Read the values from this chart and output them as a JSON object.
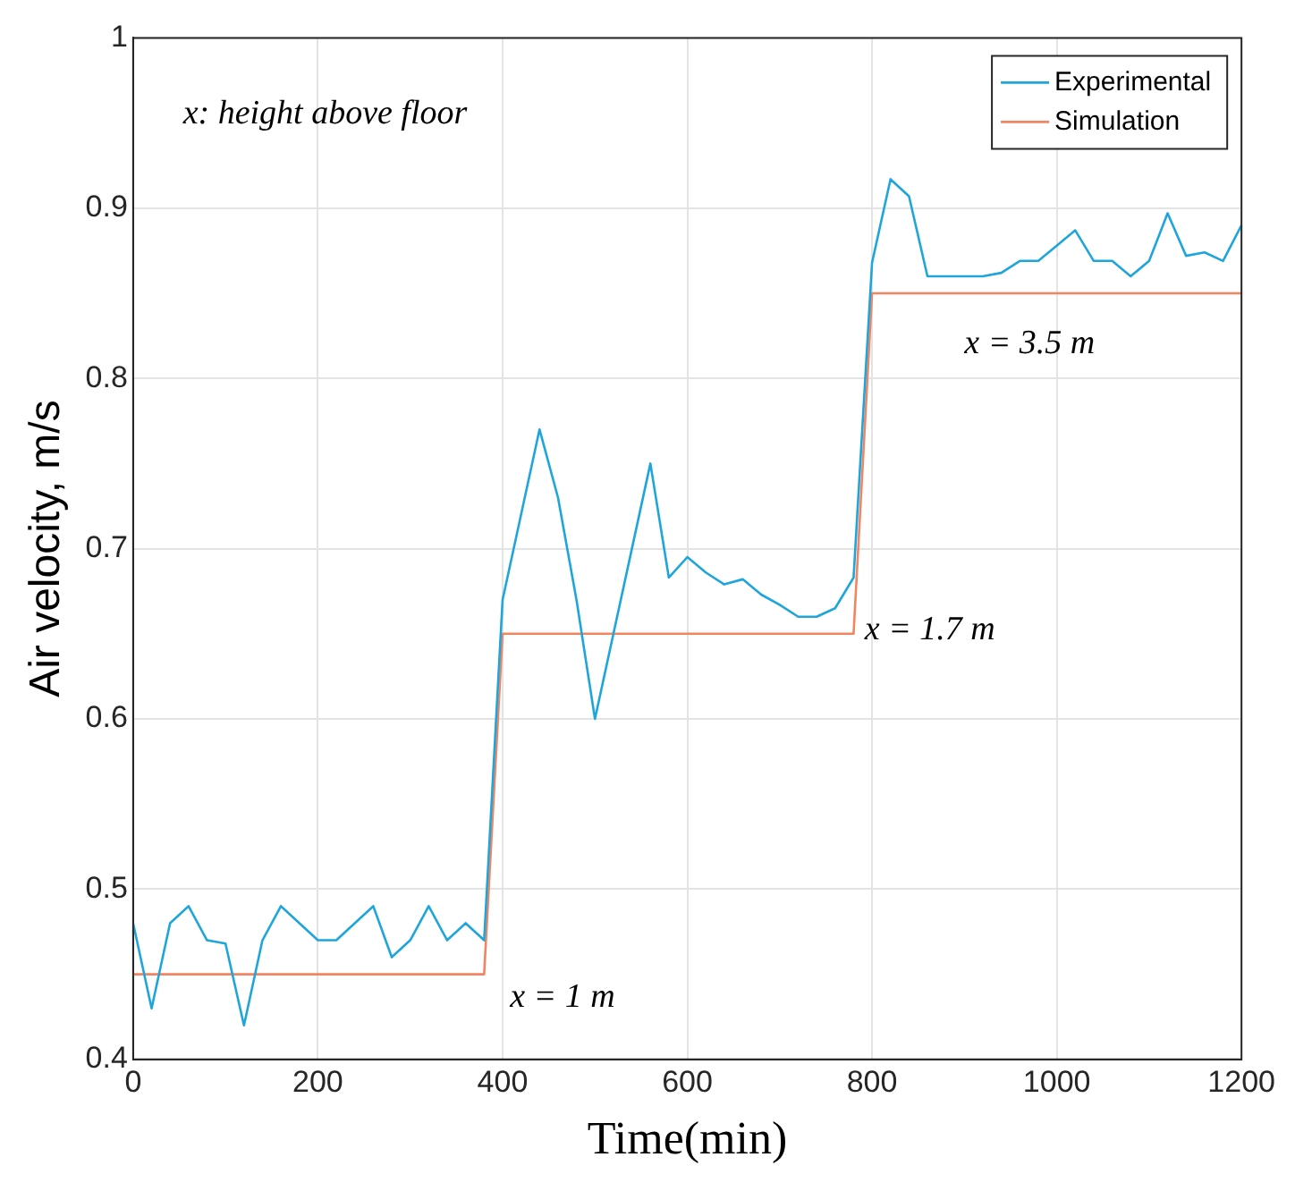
{
  "chart_data": {
    "type": "line",
    "xlabel": "Time(min)",
    "ylabel": "Air velocity, m/s",
    "xlim": [
      0,
      1200
    ],
    "xticks": [
      0,
      200,
      400,
      600,
      800,
      1000,
      1200
    ],
    "ylim": [
      0.4,
      1
    ],
    "yticks": [
      0.4,
      0.5,
      0.6,
      0.7,
      0.8,
      0.9,
      1
    ],
    "grid": true,
    "legend": "top right",
    "marker": "none",
    "series": [
      {
        "name": "Experimental",
        "color": "#1ea6dc",
        "x": [
          0,
          20,
          40,
          60,
          80,
          100,
          120,
          140,
          160,
          180,
          200,
          220,
          240,
          260,
          280,
          300,
          320,
          340,
          360,
          380,
          400,
          420,
          440,
          460,
          480,
          500,
          520,
          540,
          560,
          580,
          600,
          620,
          640,
          660,
          680,
          700,
          720,
          740,
          760,
          780,
          800,
          820,
          840,
          860,
          880,
          900,
          920,
          940,
          960,
          980,
          1000,
          1020,
          1040,
          1060,
          1080,
          1100,
          1120,
          1140,
          1160,
          1180,
          1200
        ],
        "values": [
          0.48,
          0.43,
          0.48,
          0.49,
          0.47,
          0.468,
          0.42,
          0.47,
          0.49,
          0.48,
          0.47,
          0.47,
          0.48,
          0.49,
          0.46,
          0.47,
          0.49,
          0.47,
          0.48,
          0.47,
          0.67,
          0.72,
          0.77,
          0.73,
          0.67,
          0.6,
          0.65,
          0.7,
          0.75,
          0.683,
          0.695,
          0.686,
          0.679,
          0.682,
          0.673,
          0.667,
          0.66,
          0.66,
          0.665,
          0.683,
          0.868,
          0.917,
          0.907,
          0.86,
          0.86,
          0.86,
          0.86,
          0.862,
          0.869,
          0.869,
          0.878,
          0.887,
          0.869,
          0.869,
          0.86,
          0.869,
          0.897,
          0.872,
          0.874,
          0.869,
          0.89
        ]
      },
      {
        "name": "Simulation",
        "color": "#f4845f",
        "x": [
          0,
          380,
          400,
          780,
          800,
          1200
        ],
        "values": [
          0.45,
          0.45,
          0.65,
          0.65,
          0.85,
          0.85
        ]
      }
    ],
    "annotations": [
      "x: height above floor",
      "x = 1 m",
      "x = 1.7 m",
      "x = 3.5 m"
    ]
  }
}
